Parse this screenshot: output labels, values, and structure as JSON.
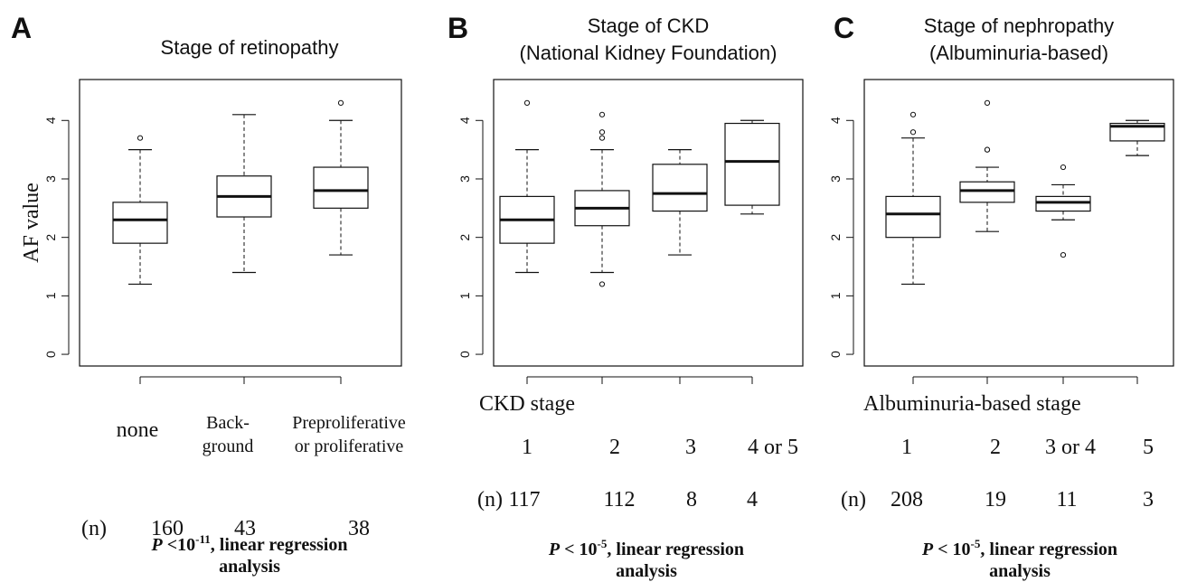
{
  "panels": [
    {
      "letter": "A",
      "title_lines": [
        "Stage of retinopathy"
      ],
      "ylabel": "AF value",
      "stage_label": "",
      "category_labels": [
        [
          "none"
        ],
        [
          "Back-",
          "ground"
        ],
        [
          "Preproliferative",
          "or proliferative"
        ]
      ],
      "n_prefix": "(n)",
      "n_values": [
        "160",
        "43",
        "38"
      ],
      "p_parts": [
        "P",
        " <10",
        "-11",
        ", linear regression"
      ],
      "p_line2": "analysis"
    },
    {
      "letter": "B",
      "title_lines": [
        "Stage of CKD",
        "(National Kidney Foundation)"
      ],
      "ylabel": "",
      "stage_label": "CKD stage",
      "category_labels": [
        [
          "1"
        ],
        [
          "2"
        ],
        [
          "3"
        ],
        [
          "4 or 5"
        ]
      ],
      "n_prefix": "(n)",
      "n_values": [
        "117",
        "112",
        "8",
        "4"
      ],
      "p_parts": [
        "P",
        " < 10",
        "-5",
        ", linear regression"
      ],
      "p_line2": "analysis"
    },
    {
      "letter": "C",
      "title_lines": [
        "Stage of  nephropathy",
        "(Albuminuria-based)"
      ],
      "ylabel": "",
      "stage_label": "Albuminuria-based stage",
      "category_labels": [
        [
          "1"
        ],
        [
          "2"
        ],
        [
          "3 or 4"
        ],
        [
          "5"
        ]
      ],
      "n_prefix": "(n)",
      "n_values": [
        "208",
        "19",
        "11",
        "3"
      ],
      "p_parts": [
        "P",
        " < 10",
        "-5",
        ", linear regression"
      ],
      "p_line2": "analysis"
    }
  ],
  "chart_data": [
    {
      "type": "box",
      "title": "Stage of retinopathy",
      "ylabel": "AF value",
      "ylim": [
        -0.2,
        4.7
      ],
      "yticks": [
        0,
        1,
        2,
        3,
        4
      ],
      "grid": false,
      "boxes": [
        {
          "category": "none",
          "n": 160,
          "whisker_low": 1.2,
          "q1": 1.9,
          "median": 2.3,
          "q3": 2.6,
          "whisker_high": 3.5,
          "outliers": [
            3.7
          ]
        },
        {
          "category": "Back-ground",
          "n": 43,
          "whisker_low": 1.4,
          "q1": 2.35,
          "median": 2.7,
          "q3": 3.05,
          "whisker_high": 4.1,
          "outliers": []
        },
        {
          "category": "Preproliferative or proliferative",
          "n": 38,
          "whisker_low": 1.7,
          "q1": 2.5,
          "median": 2.8,
          "q3": 3.2,
          "whisker_high": 4.0,
          "outliers": [
            4.3
          ]
        }
      ]
    },
    {
      "type": "box",
      "title": "Stage of CKD (National Kidney Foundation)",
      "xlabel": "CKD stage",
      "ylim": [
        -0.2,
        4.7
      ],
      "yticks": [
        0,
        1,
        2,
        3,
        4
      ],
      "grid": false,
      "boxes": [
        {
          "category": "1",
          "n": 117,
          "whisker_low": 1.4,
          "q1": 1.9,
          "median": 2.3,
          "q3": 2.7,
          "whisker_high": 3.5,
          "outliers": [
            4.3
          ]
        },
        {
          "category": "2",
          "n": 112,
          "whisker_low": 1.4,
          "q1": 2.2,
          "median": 2.5,
          "q3": 2.8,
          "whisker_high": 3.5,
          "outliers": [
            1.2,
            3.7,
            3.8,
            4.1
          ]
        },
        {
          "category": "3",
          "n": 8,
          "whisker_low": 1.7,
          "q1": 2.45,
          "median": 2.75,
          "q3": 3.25,
          "whisker_high": 3.5,
          "outliers": []
        },
        {
          "category": "4 or 5",
          "n": 4,
          "whisker_low": 2.4,
          "q1": 2.55,
          "median": 3.3,
          "q3": 3.95,
          "whisker_high": 4.0,
          "outliers": []
        }
      ]
    },
    {
      "type": "box",
      "title": "Stage of nephropathy (Albuminuria-based)",
      "xlabel": "Albuminuria-based stage",
      "ylim": [
        -0.2,
        4.7
      ],
      "yticks": [
        0,
        1,
        2,
        3,
        4
      ],
      "grid": false,
      "boxes": [
        {
          "category": "1",
          "n": 208,
          "whisker_low": 1.2,
          "q1": 2.0,
          "median": 2.4,
          "q3": 2.7,
          "whisker_high": 3.7,
          "outliers": [
            3.8,
            4.1
          ]
        },
        {
          "category": "2",
          "n": 19,
          "whisker_low": 2.1,
          "q1": 2.6,
          "median": 2.8,
          "q3": 2.95,
          "whisker_high": 3.2,
          "outliers": [
            3.5,
            3.5,
            4.3
          ]
        },
        {
          "category": "3 or 4",
          "n": 11,
          "whisker_low": 2.3,
          "q1": 2.45,
          "median": 2.6,
          "q3": 2.7,
          "whisker_high": 2.9,
          "outliers": [
            1.7,
            3.2
          ]
        },
        {
          "category": "5",
          "n": 3,
          "whisker_low": 3.4,
          "q1": 3.65,
          "median": 3.9,
          "q3": 3.95,
          "whisker_high": 4.0,
          "outliers": []
        }
      ]
    }
  ]
}
